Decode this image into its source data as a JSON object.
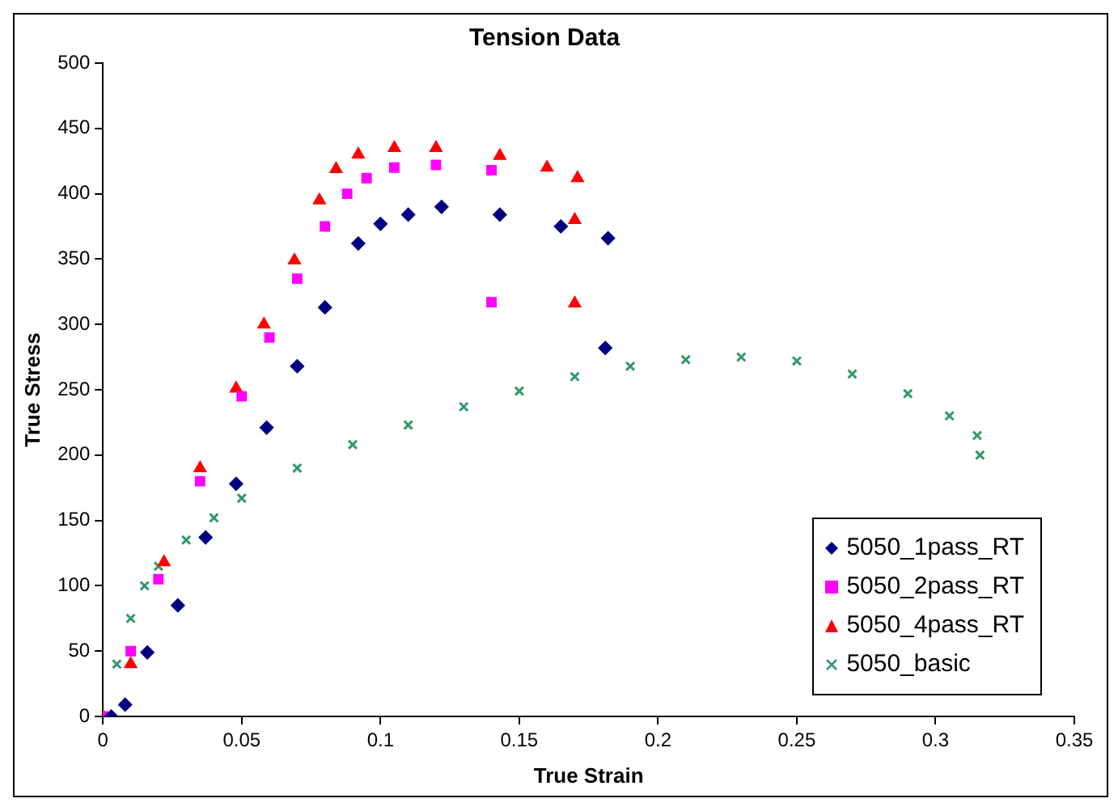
{
  "chart_data": {
    "type": "scatter",
    "title": "Tension Data",
    "xlabel": "True Strain",
    "ylabel": "True Stress",
    "xlim": [
      0,
      0.35
    ],
    "xticks": [
      0,
      0.05,
      0.1,
      0.15,
      0.2,
      0.25,
      0.3,
      0.35
    ],
    "ylim": [
      0,
      500
    ],
    "yticks": [
      0,
      50,
      100,
      150,
      200,
      250,
      300,
      350,
      400,
      450,
      500
    ],
    "grid": false,
    "legend": "bottom right",
    "series": [
      {
        "name": "5050_1pass_RT",
        "color": "#000080",
        "marker": "diamond",
        "x": [
          0.003,
          0.008,
          0.016,
          0.027,
          0.037,
          0.048,
          0.059,
          0.07,
          0.08,
          0.092,
          0.1,
          0.11,
          0.122,
          0.143,
          0.165,
          0.182,
          0.181
        ],
        "values": [
          0,
          9,
          49,
          85,
          137,
          178,
          221,
          268,
          313,
          362,
          377,
          384,
          390,
          384,
          375,
          366,
          282
        ]
      },
      {
        "name": "5050_2pass_RT",
        "color": "#ff00ff",
        "marker": "square",
        "x": [
          0,
          0.01,
          0.02,
          0.035,
          0.05,
          0.06,
          0.07,
          0.08,
          0.088,
          0.095,
          0.105,
          0.12,
          0.14,
          0.14
        ],
        "values": [
          0,
          50,
          105,
          180,
          245,
          290,
          335,
          375,
          400,
          412,
          420,
          422,
          418,
          317
        ]
      },
      {
        "name": "5050_4pass_RT",
        "color": "#ff0000",
        "marker": "triangle",
        "x": [
          0,
          0.01,
          0.022,
          0.035,
          0.048,
          0.058,
          0.069,
          0.078,
          0.084,
          0.092,
          0.105,
          0.12,
          0.143,
          0.16,
          0.171,
          0.17,
          0.17
        ],
        "values": [
          0,
          40,
          118,
          190,
          251,
          300,
          349,
          395,
          419,
          430,
          435,
          435,
          429,
          420,
          412,
          380,
          316
        ]
      },
      {
        "name": "5050_basic",
        "color": "#339966",
        "marker": "cross",
        "x": [
          0,
          0.005,
          0.01,
          0.015,
          0.02,
          0.03,
          0.04,
          0.05,
          0.07,
          0.09,
          0.11,
          0.13,
          0.15,
          0.17,
          0.19,
          0.21,
          0.23,
          0.25,
          0.27,
          0.29,
          0.305,
          0.315,
          0.316
        ],
        "values": [
          0,
          40,
          75,
          100,
          115,
          135,
          152,
          167,
          190,
          208,
          223,
          237,
          249,
          260,
          268,
          273,
          275,
          272,
          262,
          247,
          230,
          215,
          200
        ]
      }
    ]
  }
}
